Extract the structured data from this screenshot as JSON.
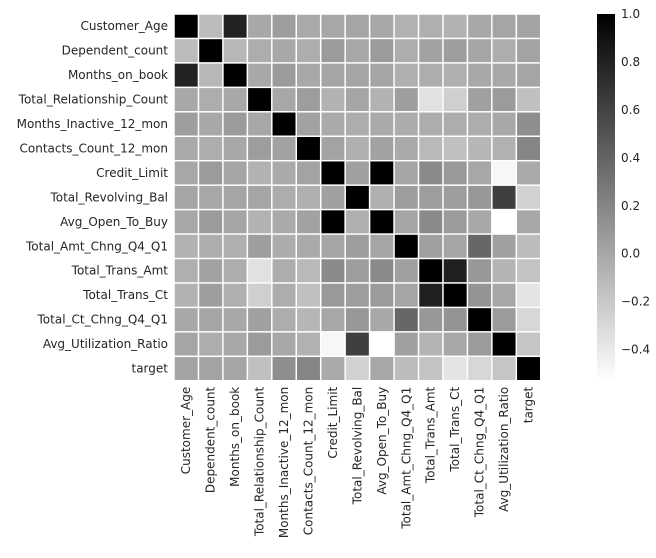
{
  "chart_data": {
    "type": "heatmap",
    "title": "",
    "xlabel": "",
    "ylabel": "",
    "colormap": "greys",
    "color_low": "#ffffff",
    "color_high": "#000000",
    "vmin": -0.53,
    "vmax": 1.0,
    "grid": false,
    "legend_position": "right",
    "cell_border_color": "#ffffff",
    "row_labels": [
      "Customer_Age",
      "Dependent_count",
      "Months_on_book",
      "Total_Relationship_Count",
      "Months_Inactive_12_mon",
      "Contacts_Count_12_mon",
      "Credit_Limit",
      "Total_Revolving_Bal",
      "Avg_Open_To_Buy",
      "Total_Amt_Chng_Q4_Q1",
      "Total_Trans_Amt",
      "Total_Trans_Ct",
      "Total_Ct_Chng_Q4_Q1",
      "Avg_Utilization_Ratio",
      "target"
    ],
    "col_labels": [
      "Customer_Age",
      "Dependent_count",
      "Months_on_book",
      "Total_Relationship_Count",
      "Months_Inactive_12_mon",
      "Contacts_Count_12_mon",
      "Credit_Limit",
      "Total_Revolving_Bal",
      "Avg_Open_To_Buy",
      "Total_Amt_Chng_Q4_Q1",
      "Total_Trans_Amt",
      "Total_Trans_Ct",
      "Total_Ct_Chng_Q4_Q1",
      "Avg_Utilization_Ratio",
      "target"
    ],
    "values": [
      [
        1.0,
        -0.12,
        0.79,
        -0.01,
        0.05,
        -0.02,
        0.0,
        0.01,
        0.0,
        -0.06,
        -0.05,
        -0.07,
        -0.01,
        0.01,
        0.02
      ],
      [
        -0.12,
        1.0,
        -0.1,
        -0.04,
        -0.01,
        -0.04,
        0.07,
        0.0,
        0.07,
        -0.04,
        0.03,
        0.05,
        0.01,
        -0.04,
        0.02
      ],
      [
        0.79,
        -0.1,
        1.0,
        -0.01,
        0.07,
        -0.01,
        0.01,
        0.01,
        0.01,
        -0.05,
        -0.04,
        -0.05,
        -0.01,
        -0.01,
        0.01
      ],
      [
        -0.01,
        -0.04,
        -0.01,
        1.0,
        -0.0,
        0.06,
        -0.07,
        0.01,
        -0.07,
        0.05,
        -0.35,
        -0.24,
        0.04,
        0.07,
        -0.15
      ],
      [
        0.05,
        -0.01,
        0.07,
        -0.0,
        1.0,
        0.03,
        -0.02,
        -0.04,
        -0.02,
        -0.03,
        -0.04,
        -0.04,
        -0.04,
        -0.01,
        0.15
      ],
      [
        -0.02,
        -0.04,
        -0.01,
        0.06,
        0.03,
        1.0,
        0.02,
        -0.05,
        0.03,
        -0.02,
        -0.11,
        -0.15,
        -0.09,
        -0.06,
        0.2
      ],
      [
        0.0,
        0.07,
        0.01,
        -0.07,
        -0.02,
        0.02,
        1.0,
        0.04,
        1.0,
        0.01,
        0.17,
        0.08,
        -0.0,
        -0.48,
        -0.02
      ],
      [
        0.01,
        0.0,
        0.01,
        0.01,
        -0.04,
        -0.05,
        0.04,
        1.0,
        -0.05,
        0.06,
        0.06,
        0.06,
        0.09,
        0.62,
        -0.26
      ],
      [
        0.0,
        0.07,
        0.01,
        -0.07,
        -0.02,
        0.03,
        1.0,
        -0.05,
        1.0,
        0.01,
        0.17,
        0.07,
        -0.01,
        -0.54,
        -0.0
      ],
      [
        -0.06,
        -0.04,
        -0.05,
        0.05,
        -0.03,
        -0.02,
        0.01,
        0.06,
        0.01,
        1.0,
        0.04,
        0.01,
        0.38,
        0.04,
        -0.13
      ],
      [
        -0.05,
        0.03,
        -0.04,
        -0.35,
        -0.04,
        -0.11,
        0.17,
        0.06,
        0.17,
        0.04,
        1.0,
        0.81,
        0.09,
        -0.08,
        -0.17
      ],
      [
        -0.07,
        0.05,
        -0.05,
        -0.24,
        -0.04,
        -0.15,
        0.08,
        0.06,
        0.07,
        0.01,
        0.81,
        1.0,
        0.11,
        0.0,
        -0.37
      ],
      [
        -0.01,
        0.01,
        -0.01,
        0.04,
        -0.04,
        -0.09,
        -0.0,
        0.09,
        -0.01,
        0.38,
        0.09,
        0.11,
        1.0,
        0.07,
        -0.29
      ],
      [
        0.01,
        -0.04,
        -0.01,
        0.07,
        -0.01,
        -0.06,
        -0.48,
        0.62,
        -0.54,
        0.04,
        -0.08,
        0.0,
        0.07,
        1.0,
        -0.18
      ],
      [
        0.02,
        0.02,
        0.01,
        -0.15,
        0.15,
        0.2,
        -0.02,
        -0.26,
        -0.0,
        -0.13,
        -0.17,
        -0.37,
        -0.29,
        -0.18,
        1.0
      ]
    ],
    "colorbar_ticks": [
      "1.0",
      "0.8",
      "0.6",
      "0.4",
      "0.2",
      "0.0",
      "−0.2",
      "−0.4"
    ],
    "colorbar_tick_values": [
      1.0,
      0.8,
      0.6,
      0.4,
      0.2,
      0.0,
      -0.2,
      -0.4
    ]
  }
}
